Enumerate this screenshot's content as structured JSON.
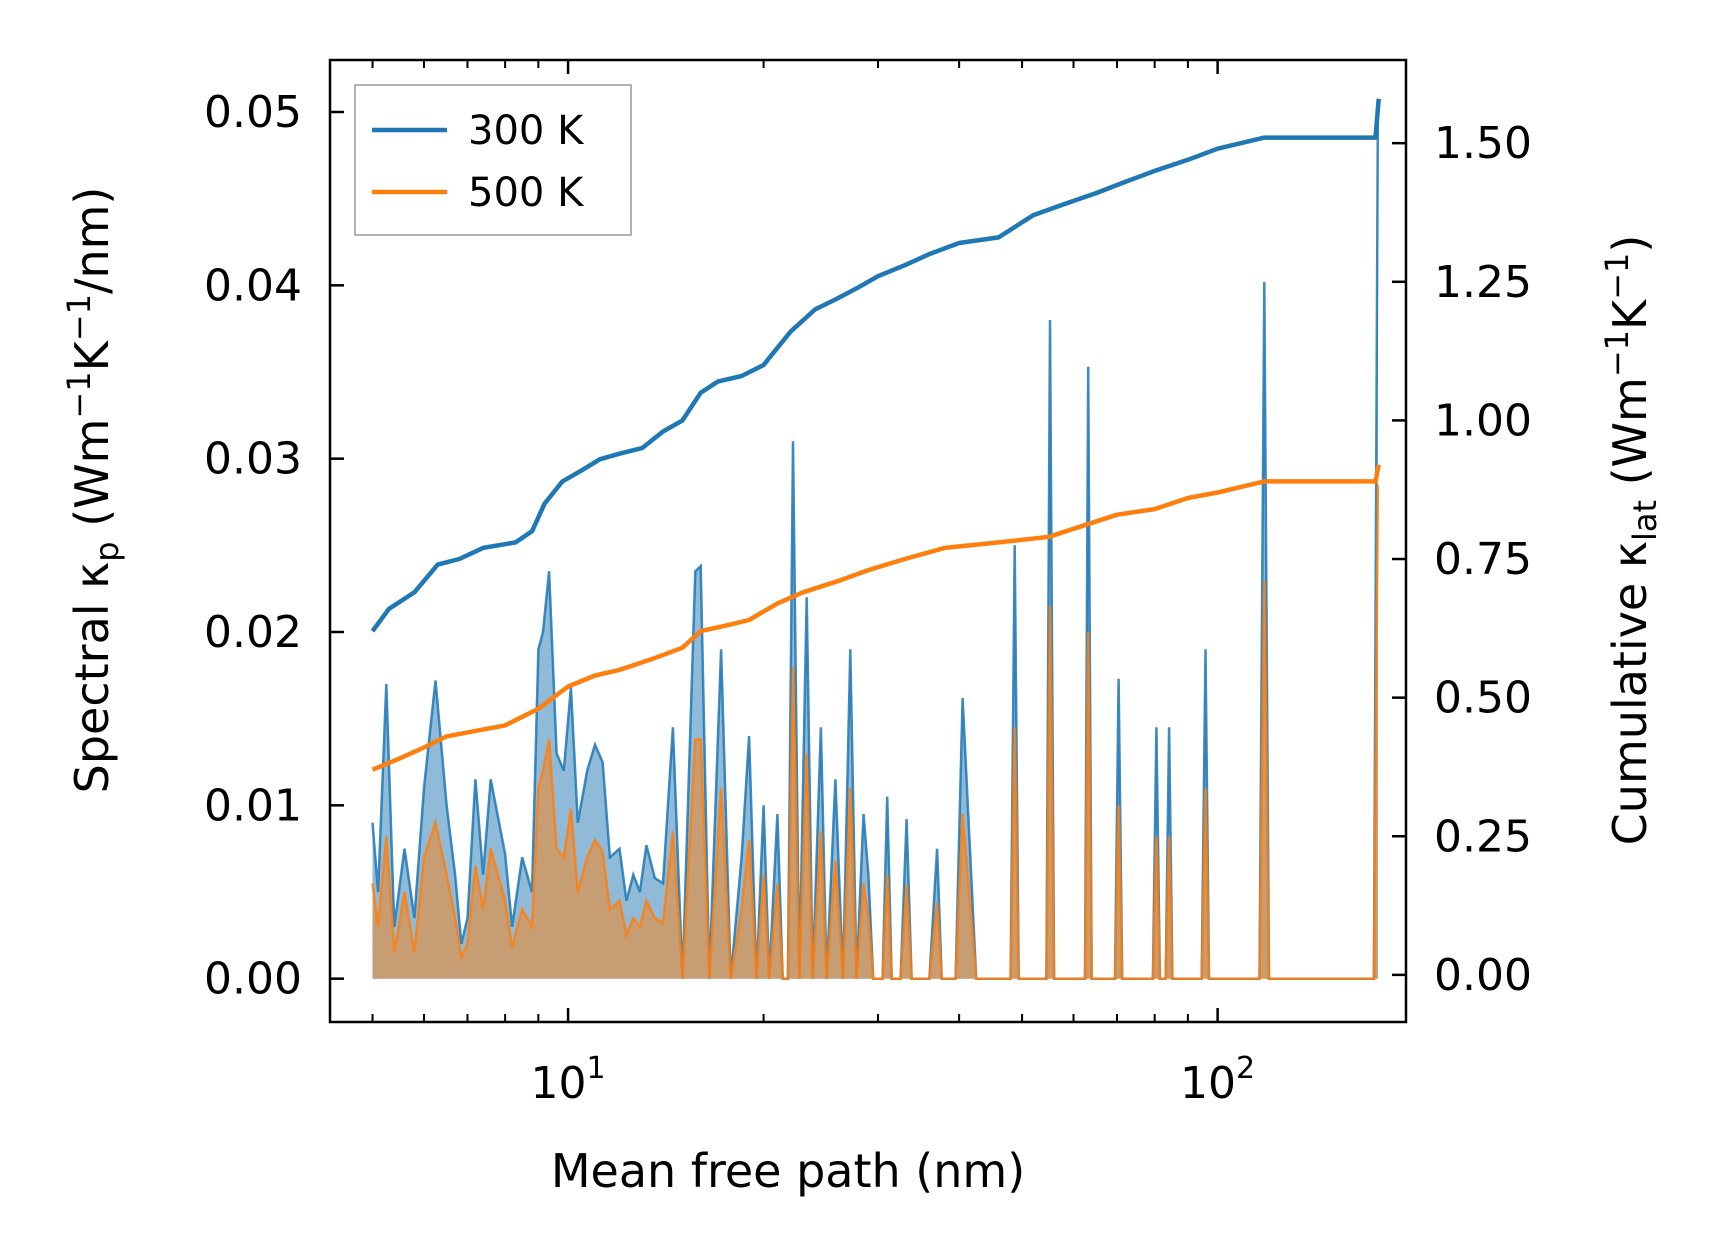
{
  "chart_data": {
    "type": "line",
    "xlabel": "Mean free path (nm)",
    "xscale": "log",
    "xlim": [
      4.3,
      195
    ],
    "x_tick_labels": [
      "10",
      "10"
    ],
    "x_tick_exponents": [
      "1",
      "2"
    ],
    "ylabel_left": {
      "base": "Spectral κ",
      "sub": "p",
      "rest1": " (Wm",
      "sup1": "−1",
      "rest2": "K",
      "sup2": "−1",
      "rest3": "/nm)"
    },
    "ylabel_right": {
      "base": "Cumulative κ",
      "sub": "lat",
      "rest1": " (Wm",
      "sup1": "−1",
      "rest2": "K",
      "sup2": "−1",
      "rest3": ")"
    },
    "ylim_left": [
      -0.0025,
      0.053
    ],
    "ylim_right": [
      -0.085,
      1.65
    ],
    "y_left_ticks": [
      "0.00",
      "0.01",
      "0.02",
      "0.03",
      "0.04",
      "0.05"
    ],
    "y_right_ticks": [
      "0.00",
      "0.25",
      "0.50",
      "0.75",
      "1.00",
      "1.25",
      "1.50"
    ],
    "legend": {
      "position": "top-left",
      "entries": [
        "300 K",
        "500 K"
      ]
    },
    "colors": {
      "300K": "#1f77b4",
      "500K": "#ff7f0e"
    },
    "cumulative": [
      {
        "name": "300 K",
        "points": [
          [
            5.0,
            0.62
          ],
          [
            5.3,
            0.66
          ],
          [
            5.8,
            0.69
          ],
          [
            6.3,
            0.74
          ],
          [
            6.8,
            0.75
          ],
          [
            7.4,
            0.77
          ],
          [
            8.3,
            0.78
          ],
          [
            8.8,
            0.8
          ],
          [
            9.2,
            0.85
          ],
          [
            9.8,
            0.89
          ],
          [
            10.5,
            0.91
          ],
          [
            11.2,
            0.93
          ],
          [
            12.0,
            0.94
          ],
          [
            13.0,
            0.95
          ],
          [
            14.0,
            0.98
          ],
          [
            15.0,
            1.0
          ],
          [
            16.0,
            1.05
          ],
          [
            17.0,
            1.07
          ],
          [
            18.5,
            1.08
          ],
          [
            20.0,
            1.1
          ],
          [
            22.0,
            1.16
          ],
          [
            24.0,
            1.2
          ],
          [
            26.0,
            1.22
          ],
          [
            28.0,
            1.24
          ],
          [
            30.0,
            1.26
          ],
          [
            33.0,
            1.28
          ],
          [
            36.0,
            1.3
          ],
          [
            40.0,
            1.32
          ],
          [
            46.0,
            1.33
          ],
          [
            52.0,
            1.37
          ],
          [
            58.0,
            1.39
          ],
          [
            65.0,
            1.41
          ],
          [
            72.0,
            1.43
          ],
          [
            80.0,
            1.45
          ],
          [
            90.0,
            1.47
          ],
          [
            100.0,
            1.49
          ],
          [
            118.0,
            1.51
          ],
          [
            150.0,
            1.51
          ],
          [
            175.0,
            1.51
          ],
          [
            177.0,
            1.58
          ]
        ]
      },
      {
        "name": "500 K",
        "points": [
          [
            5.0,
            0.37
          ],
          [
            5.5,
            0.39
          ],
          [
            6.0,
            0.41
          ],
          [
            6.5,
            0.43
          ],
          [
            7.2,
            0.44
          ],
          [
            8.0,
            0.45
          ],
          [
            9.0,
            0.48
          ],
          [
            10.0,
            0.52
          ],
          [
            11.0,
            0.54
          ],
          [
            12.0,
            0.55
          ],
          [
            13.5,
            0.57
          ],
          [
            15.0,
            0.59
          ],
          [
            16.0,
            0.62
          ],
          [
            17.5,
            0.63
          ],
          [
            19.0,
            0.64
          ],
          [
            21.0,
            0.67
          ],
          [
            23.0,
            0.69
          ],
          [
            26.0,
            0.71
          ],
          [
            29.0,
            0.73
          ],
          [
            33.0,
            0.75
          ],
          [
            38.0,
            0.77
          ],
          [
            46.0,
            0.78
          ],
          [
            55.0,
            0.79
          ],
          [
            62.0,
            0.81
          ],
          [
            70.0,
            0.83
          ],
          [
            80.0,
            0.84
          ],
          [
            90.0,
            0.86
          ],
          [
            100.0,
            0.87
          ],
          [
            118.0,
            0.89
          ],
          [
            150.0,
            0.89
          ],
          [
            175.0,
            0.89
          ],
          [
            177.0,
            0.92
          ]
        ]
      }
    ],
    "spectral": [
      {
        "name": "300 K",
        "points": [
          [
            5.0,
            0.009
          ],
          [
            5.1,
            0.005
          ],
          [
            5.25,
            0.017
          ],
          [
            5.4,
            0.003
          ],
          [
            5.6,
            0.0075
          ],
          [
            5.8,
            0.0035
          ],
          [
            6.0,
            0.011
          ],
          [
            6.25,
            0.0172
          ],
          [
            6.5,
            0.01
          ],
          [
            6.7,
            0.006
          ],
          [
            6.85,
            0.002
          ],
          [
            7.0,
            0.0035
          ],
          [
            7.2,
            0.0115
          ],
          [
            7.4,
            0.006
          ],
          [
            7.6,
            0.0115
          ],
          [
            8.0,
            0.0072
          ],
          [
            8.2,
            0.003
          ],
          [
            8.5,
            0.007
          ],
          [
            8.8,
            0.005
          ],
          [
            9.0,
            0.019
          ],
          [
            9.15,
            0.02
          ],
          [
            9.35,
            0.0235
          ],
          [
            9.6,
            0.013
          ],
          [
            9.85,
            0.012
          ],
          [
            10.1,
            0.0168
          ],
          [
            10.35,
            0.009
          ],
          [
            10.7,
            0.012
          ],
          [
            11.0,
            0.0135
          ],
          [
            11.3,
            0.0125
          ],
          [
            11.6,
            0.007
          ],
          [
            12.0,
            0.0075
          ],
          [
            12.3,
            0.0045
          ],
          [
            12.6,
            0.006
          ],
          [
            12.9,
            0.005
          ],
          [
            13.2,
            0.0077
          ],
          [
            13.6,
            0.0058
          ],
          [
            14.0,
            0.0055
          ],
          [
            14.5,
            0.0145
          ],
          [
            15.0,
            0.0
          ],
          [
            15.7,
            0.0235
          ],
          [
            16.0,
            0.0238
          ],
          [
            16.5,
            0.0
          ],
          [
            17.2,
            0.019
          ],
          [
            17.8,
            0.0
          ],
          [
            18.5,
            0.007
          ],
          [
            19.0,
            0.014
          ],
          [
            19.5,
            0.0
          ],
          [
            20.0,
            0.01
          ],
          [
            20.4,
            0.0
          ],
          [
            21.0,
            0.0095
          ],
          [
            21.4,
            0.0
          ],
          [
            21.8,
            0.0
          ],
          [
            22.2,
            0.031
          ],
          [
            22.7,
            0.0
          ],
          [
            23.3,
            0.022
          ],
          [
            23.8,
            0.0
          ],
          [
            24.5,
            0.0145
          ],
          [
            25.0,
            0.0
          ],
          [
            25.8,
            0.0115
          ],
          [
            26.5,
            0.0
          ],
          [
            27.2,
            0.019
          ],
          [
            27.8,
            0.0
          ],
          [
            28.5,
            0.0095
          ],
          [
            29.0,
            0.006
          ],
          [
            29.5,
            0.0
          ],
          [
            30.5,
            0.0
          ],
          [
            31.0,
            0.0105
          ],
          [
            31.5,
            0.0
          ],
          [
            32.5,
            0.0
          ],
          [
            33.2,
            0.0092
          ],
          [
            33.8,
            0.0
          ],
          [
            36.0,
            0.0
          ],
          [
            37.0,
            0.0075
          ],
          [
            37.6,
            0.0
          ],
          [
            39.5,
            0.0
          ],
          [
            40.5,
            0.0162
          ],
          [
            42.5,
            0.0
          ],
          [
            48.0,
            0.0
          ],
          [
            48.7,
            0.025
          ],
          [
            49.4,
            0.0
          ],
          [
            54.5,
            0.0
          ],
          [
            55.2,
            0.038
          ],
          [
            56.0,
            0.0
          ],
          [
            62.5,
            0.0
          ],
          [
            63.2,
            0.0353
          ],
          [
            64.0,
            0.0
          ],
          [
            69.5,
            0.0
          ],
          [
            70.4,
            0.0173
          ],
          [
            71.3,
            0.0
          ],
          [
            79.5,
            0.0
          ],
          [
            80.5,
            0.0145
          ],
          [
            81.5,
            0.0
          ],
          [
            83.2,
            0.0
          ],
          [
            84.2,
            0.0145
          ],
          [
            85.2,
            0.0
          ],
          [
            94.5,
            0.0
          ],
          [
            95.8,
            0.019
          ],
          [
            97.0,
            0.0
          ],
          [
            116.0,
            0.0
          ],
          [
            118.0,
            0.0402
          ],
          [
            120.0,
            0.0
          ],
          [
            174.0,
            0.0
          ],
          [
            176.5,
            0.0505
          ]
        ]
      },
      {
        "name": "500 K",
        "points": [
          [
            5.0,
            0.0055
          ],
          [
            5.1,
            0.003
          ],
          [
            5.25,
            0.0082
          ],
          [
            5.4,
            0.0015
          ],
          [
            5.6,
            0.005
          ],
          [
            5.8,
            0.0015
          ],
          [
            6.0,
            0.007
          ],
          [
            6.25,
            0.009
          ],
          [
            6.5,
            0.006
          ],
          [
            6.7,
            0.0035
          ],
          [
            6.85,
            0.0012
          ],
          [
            7.0,
            0.002
          ],
          [
            7.2,
            0.0065
          ],
          [
            7.4,
            0.004
          ],
          [
            7.6,
            0.0075
          ],
          [
            8.0,
            0.0045
          ],
          [
            8.2,
            0.0018
          ],
          [
            8.5,
            0.004
          ],
          [
            8.8,
            0.003
          ],
          [
            9.0,
            0.011
          ],
          [
            9.15,
            0.012
          ],
          [
            9.35,
            0.0138
          ],
          [
            9.6,
            0.0075
          ],
          [
            9.85,
            0.007
          ],
          [
            10.1,
            0.0098
          ],
          [
            10.35,
            0.005
          ],
          [
            10.7,
            0.007
          ],
          [
            11.0,
            0.008
          ],
          [
            11.3,
            0.0073
          ],
          [
            11.6,
            0.004
          ],
          [
            12.0,
            0.0045
          ],
          [
            12.3,
            0.0025
          ],
          [
            12.6,
            0.0035
          ],
          [
            12.9,
            0.003
          ],
          [
            13.2,
            0.0045
          ],
          [
            13.6,
            0.0035
          ],
          [
            14.0,
            0.0032
          ],
          [
            14.5,
            0.0085
          ],
          [
            15.0,
            0.0
          ],
          [
            15.7,
            0.0138
          ],
          [
            16.0,
            0.0138
          ],
          [
            16.5,
            0.0
          ],
          [
            17.2,
            0.011
          ],
          [
            17.8,
            0.0
          ],
          [
            18.5,
            0.004
          ],
          [
            19.0,
            0.008
          ],
          [
            19.5,
            0.0
          ],
          [
            20.0,
            0.006
          ],
          [
            20.4,
            0.0
          ],
          [
            21.0,
            0.0055
          ],
          [
            21.4,
            0.0
          ],
          [
            21.8,
            0.0
          ],
          [
            22.2,
            0.018
          ],
          [
            22.7,
            0.0
          ],
          [
            23.3,
            0.013
          ],
          [
            23.8,
            0.0
          ],
          [
            24.5,
            0.0085
          ],
          [
            25.0,
            0.0
          ],
          [
            25.8,
            0.0068
          ],
          [
            26.5,
            0.0
          ],
          [
            27.2,
            0.011
          ],
          [
            27.8,
            0.0
          ],
          [
            28.5,
            0.0055
          ],
          [
            29.0,
            0.0035
          ],
          [
            29.5,
            0.0
          ],
          [
            30.5,
            0.0
          ],
          [
            31.0,
            0.006
          ],
          [
            31.5,
            0.0
          ],
          [
            32.5,
            0.0
          ],
          [
            33.2,
            0.0054
          ],
          [
            33.8,
            0.0
          ],
          [
            36.0,
            0.0
          ],
          [
            37.0,
            0.0044
          ],
          [
            37.6,
            0.0
          ],
          [
            39.5,
            0.0
          ],
          [
            40.5,
            0.0095
          ],
          [
            42.5,
            0.0
          ],
          [
            48.0,
            0.0
          ],
          [
            48.7,
            0.0145
          ],
          [
            49.4,
            0.0
          ],
          [
            54.5,
            0.0
          ],
          [
            55.2,
            0.0215
          ],
          [
            56.0,
            0.0
          ],
          [
            62.5,
            0.0
          ],
          [
            63.2,
            0.02
          ],
          [
            64.0,
            0.0
          ],
          [
            69.5,
            0.0
          ],
          [
            70.4,
            0.01
          ],
          [
            71.3,
            0.0
          ],
          [
            79.5,
            0.0
          ],
          [
            80.5,
            0.0082
          ],
          [
            81.5,
            0.0
          ],
          [
            83.2,
            0.0
          ],
          [
            84.2,
            0.0082
          ],
          [
            85.2,
            0.0
          ],
          [
            94.5,
            0.0
          ],
          [
            95.8,
            0.011
          ],
          [
            97.0,
            0.0
          ],
          [
            116.0,
            0.0
          ],
          [
            118.0,
            0.023
          ],
          [
            120.0,
            0.0
          ],
          [
            174.0,
            0.0
          ],
          [
            176.5,
            0.0285
          ]
        ]
      }
    ]
  }
}
